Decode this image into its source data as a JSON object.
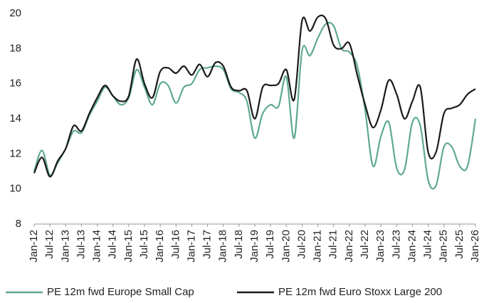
{
  "chart_data": {
    "type": "line",
    "categories": [
      "Jan-12",
      null,
      "Jul-12",
      null,
      "Jan-13",
      null,
      "Jul-13",
      null,
      "Jan-14",
      null,
      "Jul-14",
      null,
      "Jan-15",
      null,
      "Jul-15",
      null,
      "Jan-16",
      null,
      "Jul-16",
      null,
      "Jan-17",
      null,
      "Jul-17",
      null,
      "Jan-18",
      null,
      "Jul-18",
      null,
      "Jan-19",
      null,
      "Jul-19",
      null,
      "Jan-20",
      null,
      "Jul-20",
      null,
      "Jan-21",
      null,
      "Jul-21",
      null,
      "Jan-22",
      null,
      "Jul-22",
      null,
      "Jan-23",
      null,
      "Jul-23",
      null,
      "Jan-24",
      null,
      "Jul-24",
      null,
      "Jan-25",
      null,
      "Jul-25",
      null,
      "Jan-26"
    ],
    "series": [
      {
        "name": "PE 12m fwd Europe Small Cap",
        "color": "#5fa98f",
        "values": [
          11.0,
          12.2,
          10.8,
          11.5,
          12.3,
          13.3,
          13.2,
          14.2,
          15.0,
          15.8,
          15.3,
          14.8,
          15.2,
          16.8,
          15.8,
          14.8,
          16.0,
          15.9,
          14.9,
          15.8,
          16.0,
          16.8,
          16.9,
          17.0,
          16.8,
          15.7,
          15.5,
          15.0,
          12.9,
          14.3,
          14.8,
          14.7,
          16.4,
          12.9,
          17.9,
          17.6,
          18.6,
          19.4,
          19.3,
          18.0,
          17.8,
          17.0,
          14.5,
          11.3,
          13.0,
          13.8,
          11.2,
          11.1,
          13.8,
          13.6,
          10.5,
          10.2,
          12.4,
          12.4,
          11.3,
          11.3,
          14.0
        ]
      },
      {
        "name": "PE 12m fwd Euro Stoxx Large 200",
        "color": "#1a1a1a",
        "values": [
          10.9,
          11.8,
          10.7,
          11.6,
          12.3,
          13.6,
          13.3,
          14.3,
          15.2,
          15.9,
          15.3,
          15.0,
          15.3,
          17.4,
          16.0,
          15.2,
          16.7,
          16.9,
          16.6,
          17.0,
          16.5,
          17.1,
          16.4,
          17.2,
          17.0,
          15.8,
          15.6,
          15.6,
          14.0,
          15.8,
          15.9,
          16.0,
          16.8,
          15.1,
          19.6,
          19.0,
          19.8,
          19.7,
          18.2,
          18.0,
          18.3,
          16.5,
          14.8,
          13.5,
          14.5,
          16.2,
          15.4,
          14.0,
          15.0,
          15.8,
          12.1,
          12.1,
          14.3,
          14.6,
          14.8,
          15.4,
          15.7
        ]
      }
    ],
    "ylim": [
      8,
      20
    ],
    "yticks": [
      8,
      10,
      12,
      14,
      16,
      18,
      20
    ],
    "grid": false,
    "legend": "bottom"
  }
}
